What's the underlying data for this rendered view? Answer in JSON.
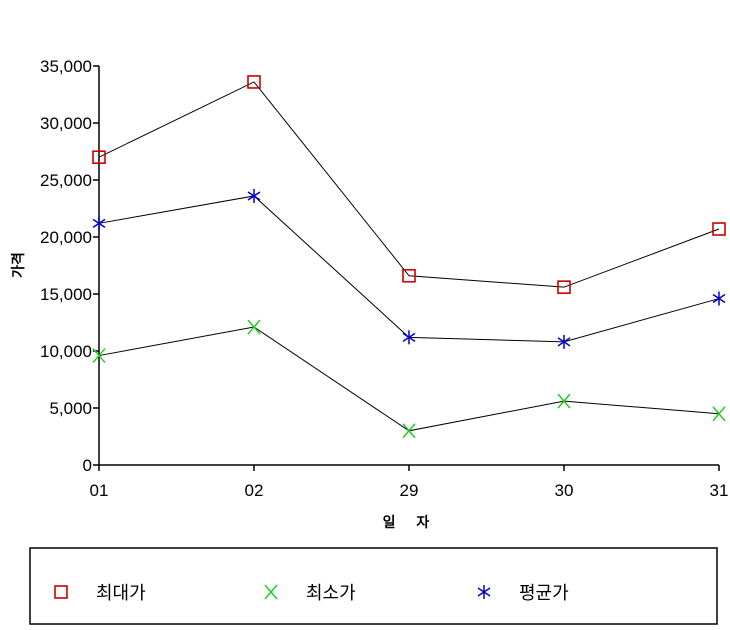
{
  "chart_data": {
    "type": "line",
    "title": "",
    "xlabel": "일 자",
    "ylabel": "가격",
    "categories": [
      "01",
      "02",
      "29",
      "30",
      "31"
    ],
    "ylim": [
      0,
      35000
    ],
    "yticks": [
      "0",
      "5,000",
      "10,000",
      "15,000",
      "20,000",
      "25,000",
      "30,000",
      "35,000"
    ],
    "ytick_values": [
      0,
      5000,
      10000,
      15000,
      20000,
      25000,
      30000,
      35000
    ],
    "grid": false,
    "legend_position": "bottom",
    "series": [
      {
        "name": "최대가",
        "marker": "square",
        "color": "#cc0000",
        "values": [
          27000,
          33600,
          16600,
          15600,
          20700
        ]
      },
      {
        "name": "최소가",
        "marker": "x",
        "color": "#22cc22",
        "values": [
          9600,
          12100,
          3000,
          5600,
          4500
        ]
      },
      {
        "name": "평균가",
        "marker": "asterisk",
        "color": "#0000cc",
        "values": [
          21200,
          23600,
          11200,
          10800,
          14600
        ]
      }
    ]
  }
}
